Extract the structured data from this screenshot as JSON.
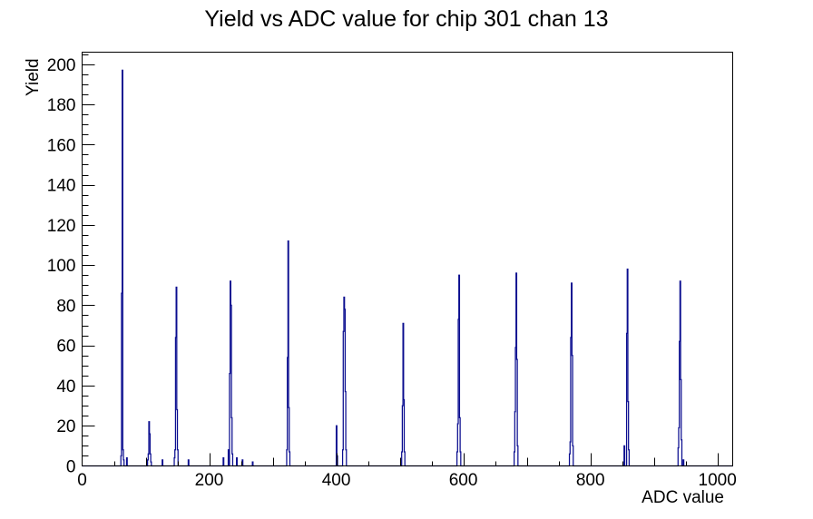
{
  "title": "Yield vs ADC value for chip 301 chan 13",
  "chart_data": {
    "type": "bar",
    "subtype": "histogram-outline",
    "title": "Yield vs ADC value for chip 301 chan 13",
    "xlabel": "ADC value",
    "ylabel": "Yield",
    "xlim": [
      0,
      1024
    ],
    "ylim": [
      0,
      206
    ],
    "grid": false,
    "legend_position": "none",
    "x_tick_labels": [
      "0",
      "200",
      "400",
      "600",
      "800",
      "1000"
    ],
    "x_major_ticks": [
      0,
      200,
      400,
      600,
      800,
      1000
    ],
    "x_minor_tick_step": 50,
    "y_tick_labels": [
      "0",
      "20",
      "40",
      "60",
      "80",
      "100",
      "120",
      "140",
      "160",
      "180",
      "200"
    ],
    "y_major_ticks": [
      0,
      20,
      40,
      60,
      80,
      100,
      120,
      140,
      160,
      180,
      200
    ],
    "y_minor_tick_step": 5,
    "line_color": "#0a0d8f",
    "axis_color": "#000000",
    "background_color": "#ffffff",
    "bins_note": "sparse [adc_value, yield] pairs; all unlisted bins are 0",
    "bins": [
      [
        61,
        5
      ],
      [
        62,
        86
      ],
      [
        63,
        197
      ],
      [
        64,
        8
      ],
      [
        65,
        3
      ],
      [
        70,
        4
      ],
      [
        103,
        3
      ],
      [
        104,
        6
      ],
      [
        105,
        22
      ],
      [
        106,
        16
      ],
      [
        107,
        6
      ],
      [
        108,
        2
      ],
      [
        126,
        3
      ],
      [
        145,
        4
      ],
      [
        146,
        8
      ],
      [
        147,
        64
      ],
      [
        148,
        89
      ],
      [
        149,
        28
      ],
      [
        150,
        8
      ],
      [
        167,
        3
      ],
      [
        222,
        4
      ],
      [
        230,
        8
      ],
      [
        232,
        46
      ],
      [
        233,
        92
      ],
      [
        234,
        80
      ],
      [
        235,
        24
      ],
      [
        236,
        6
      ],
      [
        243,
        4
      ],
      [
        252,
        3
      ],
      [
        268,
        2
      ],
      [
        322,
        8
      ],
      [
        323,
        54
      ],
      [
        324,
        112
      ],
      [
        325,
        29
      ],
      [
        326,
        7
      ],
      [
        400,
        20
      ],
      [
        401,
        5
      ],
      [
        410,
        8
      ],
      [
        411,
        67
      ],
      [
        412,
        84
      ],
      [
        413,
        78
      ],
      [
        414,
        37
      ],
      [
        415,
        8
      ],
      [
        503,
        7
      ],
      [
        504,
        30
      ],
      [
        505,
        71
      ],
      [
        506,
        33
      ],
      [
        507,
        7
      ],
      [
        590,
        7
      ],
      [
        591,
        21
      ],
      [
        592,
        73
      ],
      [
        593,
        95
      ],
      [
        594,
        24
      ],
      [
        595,
        7
      ],
      [
        680,
        7
      ],
      [
        681,
        27
      ],
      [
        682,
        59
      ],
      [
        683,
        96
      ],
      [
        684,
        53
      ],
      [
        685,
        10
      ],
      [
        767,
        6
      ],
      [
        768,
        12
      ],
      [
        769,
        64
      ],
      [
        770,
        91
      ],
      [
        771,
        55
      ],
      [
        772,
        10
      ],
      [
        853,
        10
      ],
      [
        857,
        66
      ],
      [
        858,
        98
      ],
      [
        859,
        32
      ],
      [
        860,
        8
      ],
      [
        938,
        9
      ],
      [
        939,
        19
      ],
      [
        940,
        62
      ],
      [
        941,
        92
      ],
      [
        942,
        43
      ],
      [
        943,
        13
      ],
      [
        946,
        3
      ]
    ]
  }
}
